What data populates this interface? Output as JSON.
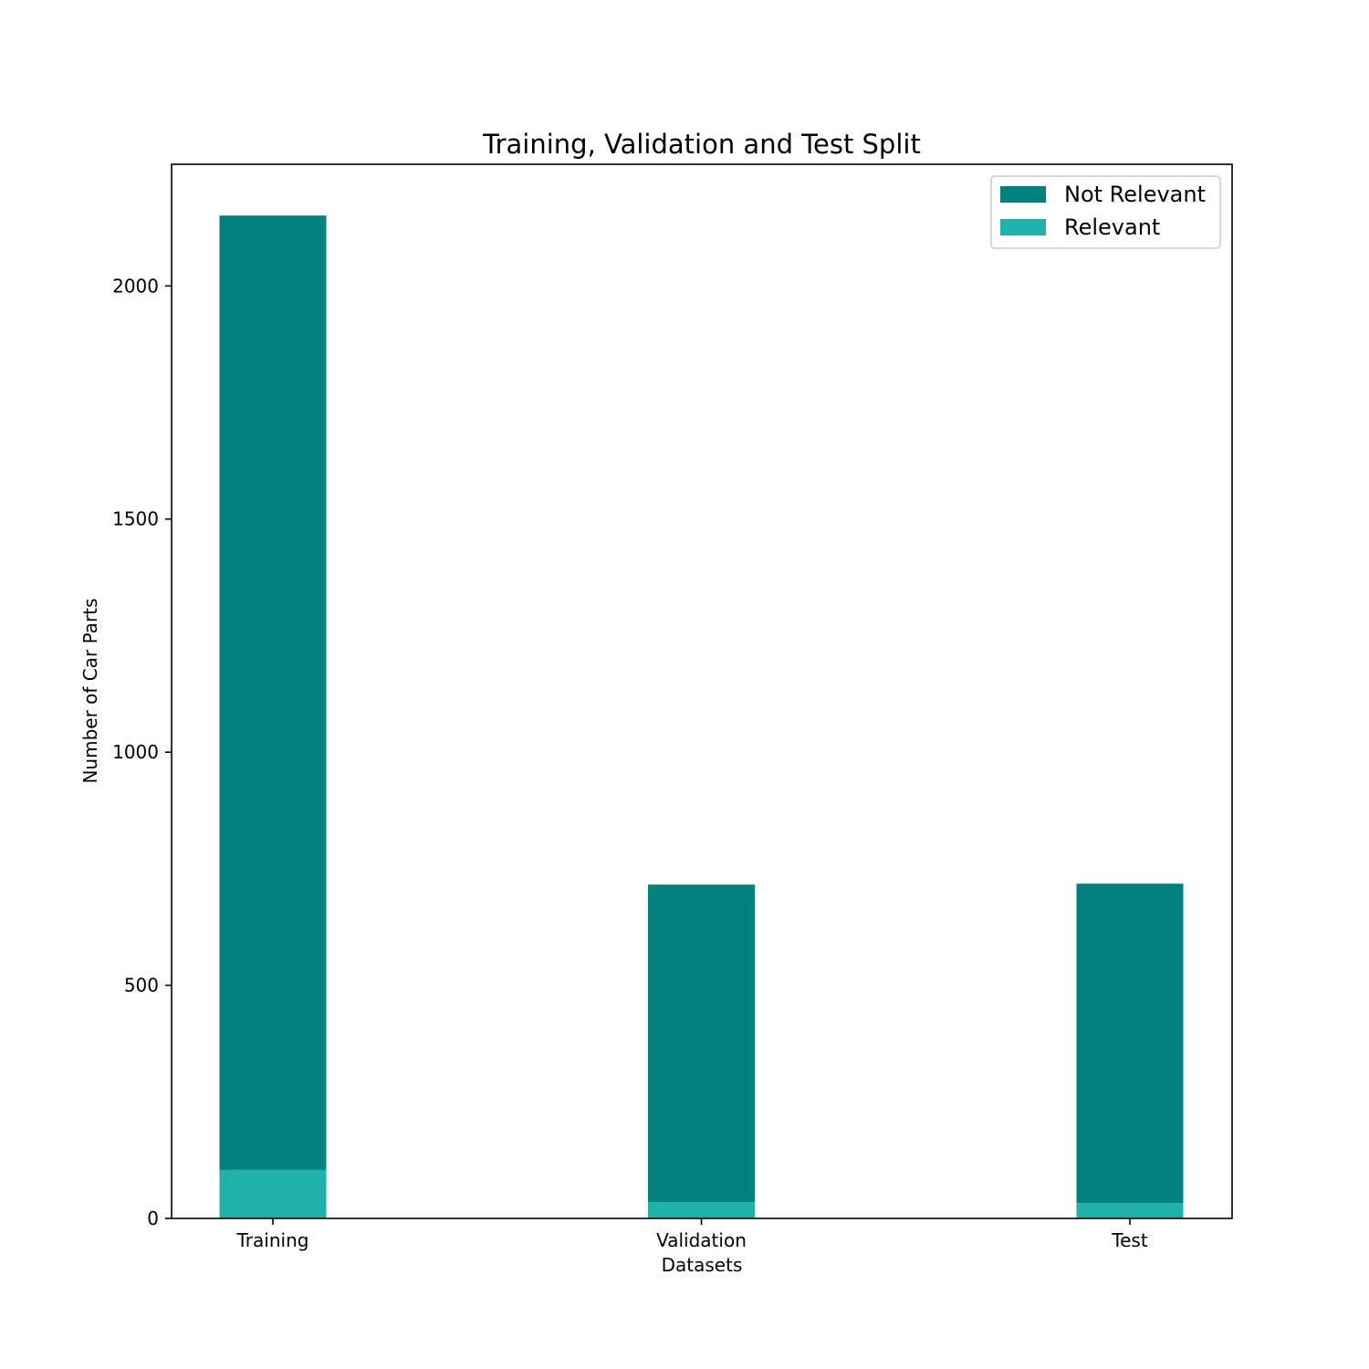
{
  "chart_data": {
    "type": "bar",
    "stacked": true,
    "title": "Training, Validation and Test Split",
    "xlabel": "Datasets",
    "ylabel": "Number of Car Parts",
    "categories": [
      "Training",
      "Validation",
      "Test"
    ],
    "series": [
      {
        "name": "Relevant",
        "values": [
          104,
          35,
          33
        ],
        "color": "#20b2aa"
      },
      {
        "name": "Not Relevant",
        "values": [
          2047,
          681,
          685
        ],
        "color": "#008080"
      }
    ],
    "ylim": [
      0,
      2261
    ],
    "yticks": [
      0,
      500,
      1000,
      1500,
      2000
    ],
    "grid": false,
    "legend": {
      "position": "top-right",
      "order": [
        "Not Relevant",
        "Relevant"
      ]
    }
  }
}
